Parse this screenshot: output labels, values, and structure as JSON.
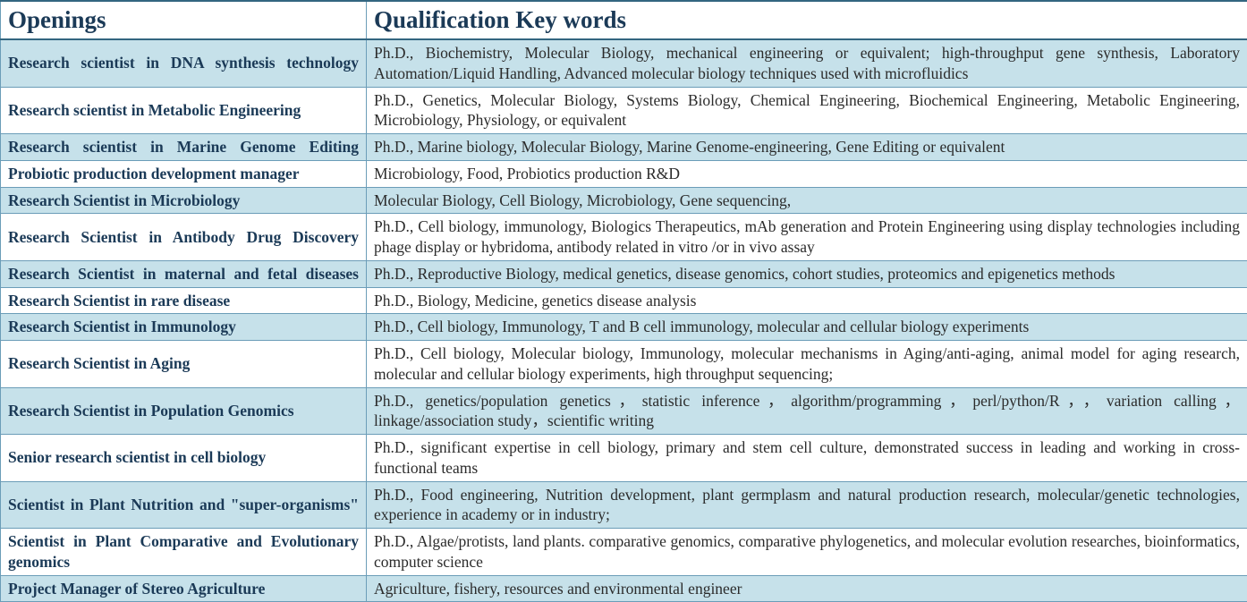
{
  "header": {
    "openings": "Openings",
    "qualifications": "Qualification Key words"
  },
  "colors": {
    "text_primary": "#1b3a57",
    "text_body": "#2b2b2b",
    "shade": "#c6e1ea",
    "plain": "#ffffff",
    "border": "#6b9db8",
    "header_border": "#336680"
  },
  "rows": [
    {
      "shaded": true,
      "single_line": false,
      "opening": "Research scientist in DNA synthesis technology",
      "qualifications": "Ph.D., Biochemistry, Molecular Biology, mechanical engineering or equivalent; high-throughput gene synthesis, Laboratory Automation/Liquid Handling, Advanced molecular biology techniques used with microfluidics"
    },
    {
      "shaded": false,
      "single_line": true,
      "opening": "Research scientist in Metabolic Engineering",
      "qualifications": "Ph.D., Genetics, Molecular Biology, Systems Biology, Chemical Engineering, Biochemical Engineering, Metabolic Engineering, Microbiology, Physiology, or equivalent"
    },
    {
      "shaded": true,
      "single_line": false,
      "opening": "Research scientist in Marine Genome Editing",
      "qualifications": "Ph.D., Marine biology, Molecular Biology, Marine Genome-engineering, Gene Editing or equivalent"
    },
    {
      "shaded": false,
      "single_line": true,
      "opening": "Probiotic production development manager",
      "qualifications": "Microbiology, Food, Probiotics production R&D"
    },
    {
      "shaded": true,
      "single_line": true,
      "opening": "Research Scientist in Microbiology",
      "qualifications": "Molecular Biology, Cell Biology, Microbiology, Gene sequencing,"
    },
    {
      "shaded": false,
      "single_line": false,
      "opening": "Research Scientist in Antibody Drug Discovery",
      "qualifications": "Ph.D., Cell biology, immunology, Biologics Therapeutics, mAb generation and Protein Engineering using display technologies including phage display or hybridoma, antibody related in vitro /or in vivo assay"
    },
    {
      "shaded": true,
      "single_line": false,
      "opening": "Research Scientist in maternal and fetal diseases",
      "qualifications": "Ph.D., Reproductive Biology, medical genetics, disease genomics, cohort studies, proteomics and epigenetics methods"
    },
    {
      "shaded": false,
      "single_line": true,
      "opening": "Research Scientist in rare disease",
      "qualifications": "Ph.D., Biology, Medicine, genetics disease analysis"
    },
    {
      "shaded": true,
      "single_line": true,
      "opening": "Research Scientist in Immunology",
      "qualifications": "Ph.D., Cell biology, Immunology, T and B cell immunology, molecular and cellular biology experiments"
    },
    {
      "shaded": false,
      "single_line": true,
      "opening": "Research Scientist in Aging",
      "qualifications": "Ph.D., Cell biology, Molecular biology, Immunology, molecular mechanisms in Aging/anti-aging, animal model for aging research, molecular and cellular biology experiments, high throughput sequencing;"
    },
    {
      "shaded": true,
      "single_line": true,
      "opening": "Research Scientist in Population Genomics",
      "qualifications": "Ph.D., genetics/population genetics，statistic inference，algorithm/programming，perl/python/R，，variation calling，linkage/association study，scientific writing"
    },
    {
      "shaded": false,
      "single_line": true,
      "opening": "Senior research scientist in cell biology",
      "qualifications": "Ph.D., significant expertise in cell biology, primary and stem cell culture, demonstrated success in leading and working in cross-functional teams"
    },
    {
      "shaded": true,
      "single_line": false,
      "opening": "Scientist in Plant Nutrition and \"super-organisms\"",
      "qualifications": "Ph.D., Food engineering, Nutrition development, plant germplasm and natural production research, molecular/genetic technologies, experience in academy or in industry;"
    },
    {
      "shaded": false,
      "single_line": false,
      "opening": "Scientist in Plant Comparative and Evolutionary genomics",
      "qualifications": "Ph.D., Algae/protists, land plants.  comparative genomics, comparative phylogenetics, and molecular evolution researches, bioinformatics, computer science"
    },
    {
      "shaded": true,
      "single_line": true,
      "opening": "Project Manager of Stereo Agriculture",
      "qualifications": "Agriculture, fishery, resources and environmental engineer"
    }
  ]
}
